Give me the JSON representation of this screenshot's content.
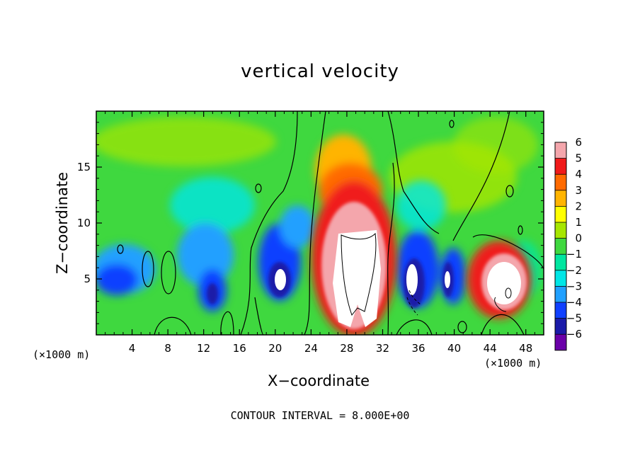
{
  "chart_data": {
    "type": "heatmap",
    "title": "vertical velocity",
    "xlabel": "X−coordinate",
    "ylabel": "Z−coordinate",
    "x_unit": "(×1000 m)",
    "xlim": [
      0,
      50
    ],
    "ylim": [
      0,
      20
    ],
    "x_ticks": [
      "4",
      "8",
      "12",
      "16",
      "20",
      "24",
      "28",
      "32",
      "36",
      "40",
      "44",
      "48"
    ],
    "x_tick_values": [
      4,
      8,
      12,
      16,
      20,
      24,
      28,
      32,
      36,
      40,
      44,
      48
    ],
    "y_ticks": [
      "5",
      "10",
      "15"
    ],
    "y_tick_values": [
      5,
      10,
      15
    ],
    "colorbar": {
      "labels": [
        "6",
        "5",
        "4",
        "3",
        "2",
        "1",
        "0",
        "−1",
        "−2",
        "−3",
        "−4",
        "−5",
        "−6"
      ],
      "levels": [
        6,
        5,
        4,
        3,
        2,
        1,
        0,
        -1,
        -2,
        -3,
        -4,
        -5,
        -6
      ],
      "colors": [
        "#f4a6ac",
        "#f01a1a",
        "#ff6a00",
        "#ffb400",
        "#ffff00",
        "#a6e600",
        "#3fd83f",
        "#00e6a0",
        "#00e6e6",
        "#20a0ff",
        "#1040ff",
        "#1a1aa8",
        "#6a00a8"
      ]
    },
    "features": [
      {
        "name": "updraft core",
        "x_center": 28.6,
        "z_center": 6.5,
        "value": "> 6"
      },
      {
        "name": "updraft",
        "x_center": 45,
        "z_center": 5,
        "value": "> 6"
      },
      {
        "name": "downdraft",
        "x_center": 3,
        "z_center": 5,
        "value": "-5"
      },
      {
        "name": "downdraft",
        "x_center": 20,
        "z_center": 4,
        "value": "< -6"
      },
      {
        "name": "downdraft",
        "x_center": 36,
        "z_center": 4,
        "value": "< -6"
      }
    ],
    "contour_interval": 8.0
  },
  "contour_note": "CONTOUR INTERVAL = 8.000E+00"
}
